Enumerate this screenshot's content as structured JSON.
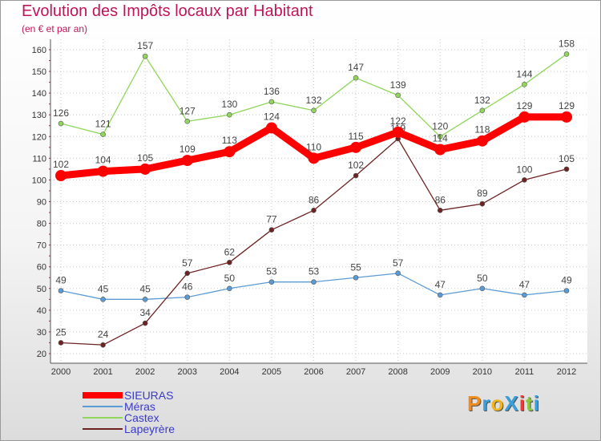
{
  "header": {
    "title": "Evolution des Impôts locaux par Habitant",
    "subtitle": "(en € et par an)"
  },
  "colors": {
    "title": "#c0145a",
    "grid": "#c8c8c8",
    "axis": "#555555",
    "legend_text": "#3a3ac8"
  },
  "chart_data": {
    "type": "line",
    "title": "Evolution des Impôts locaux par Habitant",
    "subtitle": "(en € et par an)",
    "xlabel": "",
    "ylabel": "",
    "ylim": [
      20,
      160
    ],
    "yticks": [
      20,
      30,
      40,
      50,
      60,
      70,
      80,
      90,
      100,
      110,
      120,
      130,
      140,
      150,
      160
    ],
    "grid": true,
    "legend_position": "bottom-left",
    "x": [
      "2000",
      "2001",
      "2002",
      "2003",
      "2004",
      "2005",
      "2006",
      "2007",
      "2008",
      "2009",
      "2010",
      "2011",
      "2012"
    ],
    "series": [
      {
        "name": "SIEURAS",
        "color": "#ff0000",
        "values": [
          102,
          104,
          105,
          109,
          113,
          124,
          110,
          115,
          122,
          114,
          118,
          129,
          129
        ]
      },
      {
        "name": "Méras",
        "color": "#5b9bd5",
        "values": [
          49,
          45,
          45,
          46,
          50,
          53,
          53,
          55,
          57,
          47,
          50,
          47,
          49
        ]
      },
      {
        "name": "Castex",
        "color": "#8fd65a",
        "values": [
          126,
          121,
          157,
          127,
          130,
          136,
          132,
          147,
          139,
          120,
          132,
          144,
          158
        ]
      },
      {
        "name": "Lapeyrère",
        "color": "#6e2323",
        "values": [
          25,
          24,
          34,
          57,
          62,
          77,
          86,
          102,
          119,
          86,
          89,
          100,
          105
        ]
      }
    ]
  },
  "logo": {
    "letters": [
      {
        "ch": "P",
        "color": "#f08c1e"
      },
      {
        "ch": "r",
        "color": "#3aa0dc"
      },
      {
        "ch": "o",
        "color": "#f0b41e"
      },
      {
        "ch": "X",
        "color": "#3aa0dc"
      },
      {
        "ch": "i",
        "color": "#e63c3c"
      },
      {
        "ch": "t",
        "color": "#8cc83c"
      },
      {
        "ch": "i",
        "color": "#3aa0dc"
      }
    ]
  }
}
